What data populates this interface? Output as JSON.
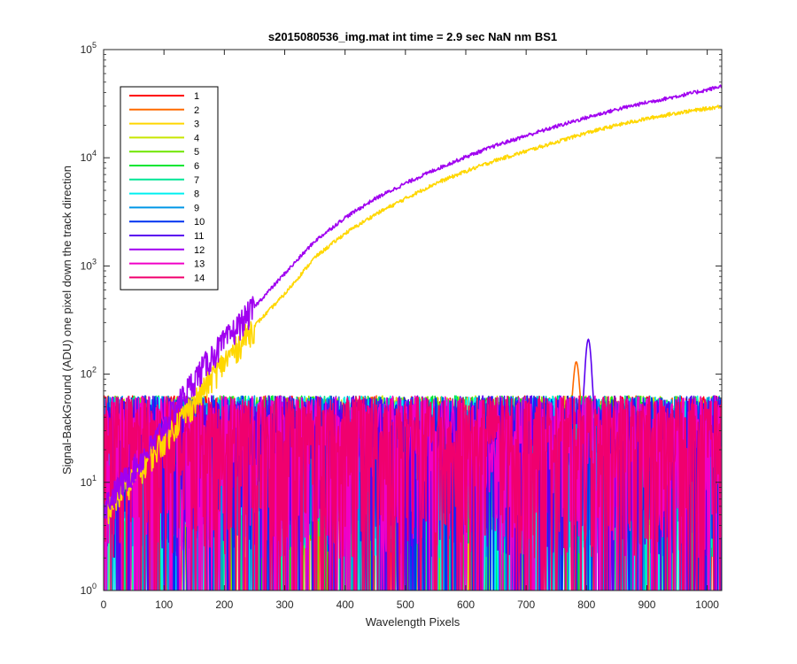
{
  "chart_data": {
    "type": "line",
    "title": "s2015080536_img.mat int time = 2.9 sec  NaN nm BS1",
    "xlabel": "Wavelength Pixels",
    "ylabel": "Signal-BackGround (ADU) one pixel down the track direction",
    "xlim": [
      0,
      1024
    ],
    "ylim": [
      1,
      100000
    ],
    "yscale": "log",
    "grid": false,
    "legend_position": "top-left",
    "x_ticks": [
      "0",
      "100",
      "200",
      "300",
      "400",
      "500",
      "600",
      "700",
      "800",
      "900",
      "1000"
    ],
    "y_tick_exponents": [
      "0",
      "1",
      "2",
      "3",
      "4",
      "5"
    ],
    "y_tick_base": "10",
    "series": [
      {
        "name": "1",
        "color": "#ff0000",
        "kind": "noise",
        "peak": 0
      },
      {
        "name": "2",
        "color": "#ff6a00",
        "kind": "noise",
        "peak": 130
      },
      {
        "name": "3",
        "color": "#ffd700",
        "kind": "rising",
        "x": [
          0,
          80,
          120,
          150,
          180,
          200,
          250,
          300,
          350,
          400,
          450,
          500,
          550,
          600,
          650,
          700,
          750,
          800,
          850,
          900,
          950,
          1000,
          1024
        ],
        "values": [
          5,
          18,
          35,
          55,
          95,
          130,
          280,
          550,
          1200,
          2000,
          3000,
          4200,
          5800,
          7500,
          9500,
          11500,
          14000,
          17000,
          20000,
          23000,
          26000,
          28500,
          30000
        ]
      },
      {
        "name": "4",
        "color": "#c8e600",
        "kind": "noise",
        "peak": 0
      },
      {
        "name": "5",
        "color": "#6ee600",
        "kind": "noise",
        "peak": 0
      },
      {
        "name": "6",
        "color": "#00e632",
        "kind": "noise",
        "peak": 0
      },
      {
        "name": "7",
        "color": "#00e696",
        "kind": "noise",
        "peak": 0
      },
      {
        "name": "8",
        "color": "#00f0f0",
        "kind": "noise",
        "peak": 0
      },
      {
        "name": "9",
        "color": "#0096e6",
        "kind": "noise",
        "peak": 0
      },
      {
        "name": "10",
        "color": "#0032f0",
        "kind": "noise",
        "peak": 0
      },
      {
        "name": "11",
        "color": "#5a00f0",
        "kind": "noise",
        "peak": 210
      },
      {
        "name": "12",
        "color": "#a000f0",
        "kind": "rising",
        "x": [
          0,
          80,
          120,
          150,
          180,
          200,
          250,
          300,
          350,
          400,
          450,
          500,
          550,
          600,
          650,
          700,
          750,
          800,
          850,
          900,
          950,
          1000,
          1024
        ],
        "values": [
          6,
          22,
          50,
          90,
          150,
          200,
          420,
          850,
          1700,
          2800,
          4200,
          5800,
          7800,
          10200,
          13000,
          16000,
          19500,
          23500,
          28000,
          32500,
          37000,
          42500,
          46000
        ]
      },
      {
        "name": "13",
        "color": "#f000c8",
        "kind": "noise",
        "peak": 0
      },
      {
        "name": "14",
        "color": "#f0006e",
        "kind": "noise",
        "peak": 0
      }
    ]
  }
}
